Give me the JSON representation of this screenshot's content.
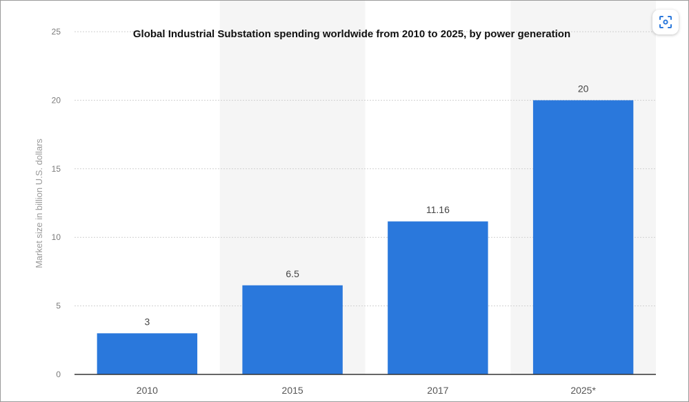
{
  "chart_data": {
    "type": "bar",
    "title": "Global Industrial Substation spending worldwide from 2010 to 2025, by power generation",
    "ylabel": "Market size in billion U.S. dollars",
    "xlabel": "",
    "categories": [
      "2010",
      "2015",
      "2017",
      "2025*"
    ],
    "values": [
      3,
      6.5,
      11.16,
      20
    ],
    "value_labels": [
      "3",
      "6.5",
      "11.16",
      "20"
    ],
    "ylim": [
      0,
      25
    ],
    "yticks": [
      "0",
      "5",
      "10",
      "15",
      "20",
      "25"
    ],
    "grid": true,
    "bar_color": "#2a78dc"
  },
  "toolbar": {
    "screenshot_icon": "screenshot-scan-icon",
    "accent": "#2a78dc"
  }
}
